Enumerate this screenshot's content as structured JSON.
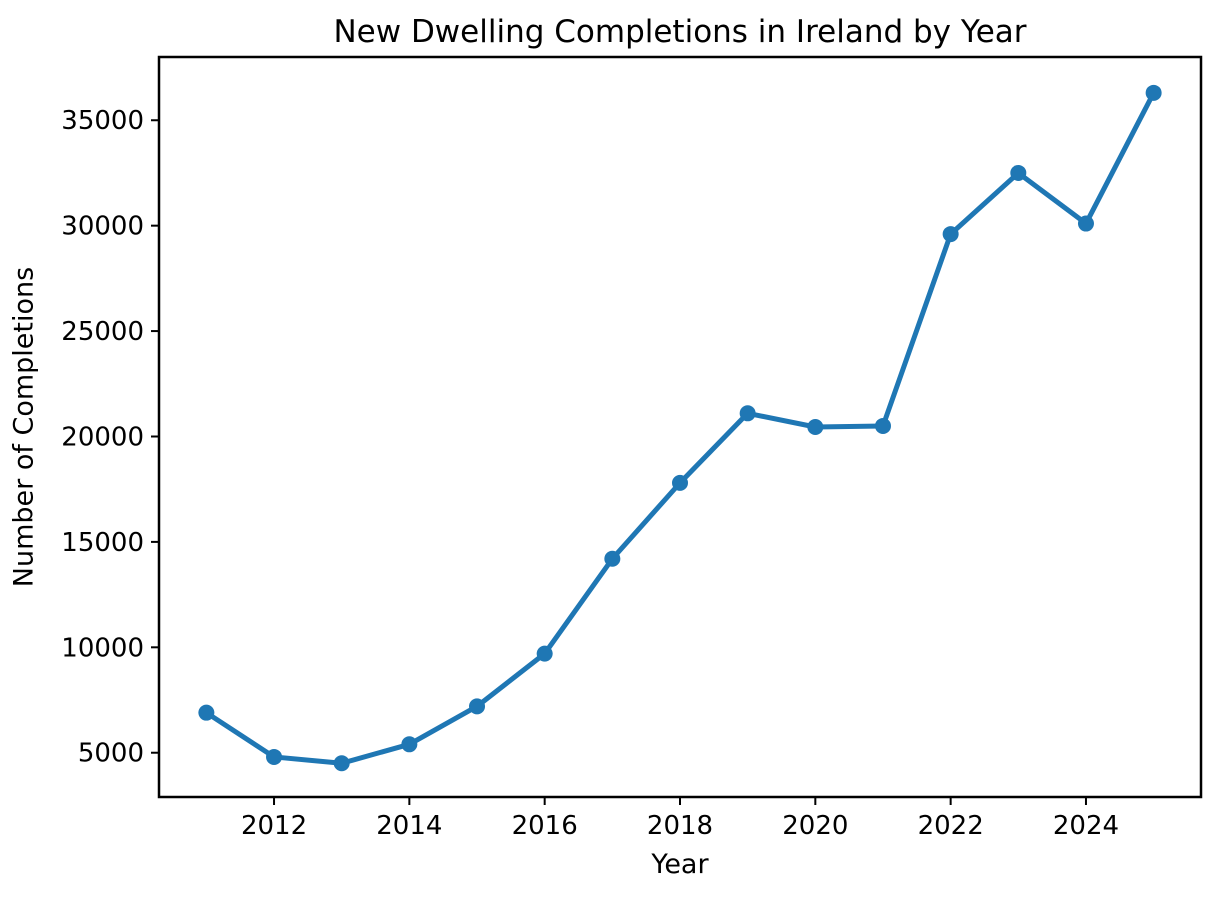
{
  "figure": {
    "background": "#ffffff"
  },
  "chart_data": {
    "type": "line",
    "title": "New Dwelling Completions in Ireland by Year",
    "xlabel": "Year",
    "ylabel": "Number of Completions",
    "x": [
      2011,
      2012,
      2013,
      2014,
      2015,
      2016,
      2017,
      2018,
      2019,
      2020,
      2021,
      2022,
      2023,
      2024,
      2025
    ],
    "values": [
      6900,
      4800,
      4500,
      5400,
      7200,
      9700,
      14200,
      17800,
      21100,
      20450,
      20500,
      29600,
      32500,
      30100,
      36300
    ],
    "series": [
      {
        "name": "Number of Completions",
        "values": [
          6900,
          4800,
          4500,
          5400,
          7200,
          9700,
          14200,
          17800,
          21100,
          20450,
          20500,
          29600,
          32500,
          30100,
          36300
        ]
      }
    ],
    "x_ticks": [
      2012,
      2014,
      2016,
      2018,
      2020,
      2022,
      2024
    ],
    "y_ticks": [
      5000,
      10000,
      15000,
      20000,
      25000,
      30000,
      35000
    ],
    "xlim": [
      2010.3,
      2025.7
    ],
    "ylim": [
      2900,
      38000
    ],
    "grid": false,
    "legend_position": "none",
    "line_color": "#1f77b4",
    "marker": "circle",
    "marker_color": "#1f77b4",
    "axis_color": "#000000",
    "text_color": "#000000"
  }
}
